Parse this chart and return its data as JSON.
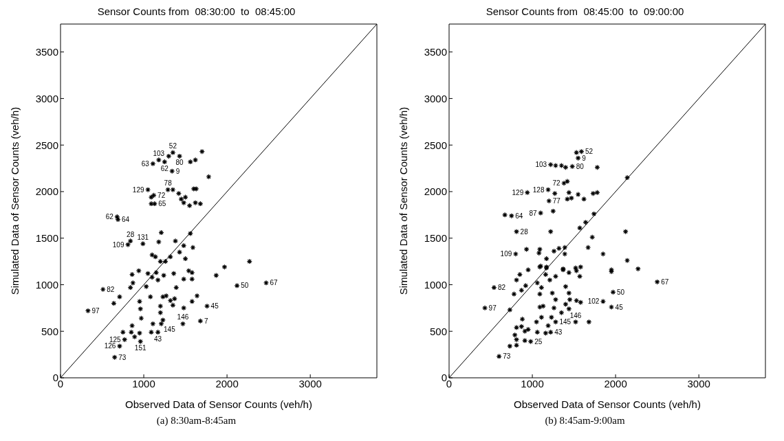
{
  "chart_data": [
    {
      "type": "scatter",
      "title": "Sensor Counts from  08:30:00  to  08:45:00",
      "xlabel": "Observed Data of Sensor Counts (veh/h)",
      "ylabel": "Simulated Data of Sensor Counts (veh/h)",
      "xlim": [
        0,
        3800
      ],
      "ylim": [
        0,
        3800
      ],
      "xticks": [
        0,
        1000,
        2000,
        3000
      ],
      "yticks": [
        0,
        500,
        1000,
        1500,
        2000,
        2500,
        3000,
        3500
      ],
      "grid": false,
      "series": [
        {
          "color": "#000000",
          "marker": "cross",
          "x": [
            1350,
            1430,
            1180,
            1110,
            1250,
            1340,
            1700,
            1620,
            1560,
            1780,
            1300,
            1050,
            1120,
            1090,
            1290,
            1350,
            1130,
            1090,
            1420,
            1450,
            1480,
            1600,
            1630,
            1550,
            1620,
            1680,
            1500,
            680,
            690,
            840,
            810,
            990,
            1180,
            1210,
            1560,
            1380,
            1480,
            1590,
            1430,
            1320,
            1140,
            1100,
            1200,
            1500,
            1260,
            1970,
            2270,
            940,
            860,
            1050,
            1100,
            1150,
            1170,
            1240,
            1360,
            1540,
            1580,
            1480,
            1580,
            1870,
            870,
            840,
            1030,
            1390,
            510,
            2120,
            710,
            640,
            1080,
            1230,
            1270,
            1320,
            1370,
            1350,
            950,
            960,
            970,
            1480,
            1580,
            1640,
            1760,
            1200,
            1200,
            1230,
            1210,
            1110,
            1470,
            1680,
            860,
            850,
            750,
            950,
            1090,
            1170,
            890,
            770,
            960,
            710,
            650,
            330,
            2470
          ],
          "values": [
            2420,
            2380,
            2340,
            2300,
            2320,
            2220,
            2430,
            2340,
            2320,
            2160,
            2380,
            2020,
            1960,
            1940,
            2020,
            2020,
            1870,
            1870,
            1980,
            1920,
            1880,
            2030,
            2030,
            1850,
            1880,
            1870,
            1940,
            1730,
            1700,
            1470,
            1430,
            1440,
            1460,
            1560,
            1550,
            1470,
            1420,
            1400,
            1350,
            1300,
            1300,
            1320,
            1250,
            1280,
            1250,
            1190,
            1250,
            1150,
            1110,
            1120,
            1080,
            1130,
            1050,
            1100,
            1120,
            1150,
            1130,
            1060,
            1060,
            1100,
            1020,
            970,
            980,
            970,
            950,
            990,
            870,
            800,
            870,
            870,
            880,
            830,
            850,
            780,
            820,
            740,
            640,
            750,
            820,
            880,
            770,
            770,
            700,
            620,
            580,
            580,
            580,
            610,
            560,
            490,
            490,
            480,
            490,
            490,
            440,
            410,
            390,
            340,
            220,
            720,
            1020
          ]
        },
        {
          "type": "line",
          "color": "#000000",
          "x": [
            0,
            3800
          ],
          "values": [
            0,
            3800
          ]
        }
      ],
      "annotations": [
        {
          "text": "52",
          "x": 1350,
          "y": 2420
        },
        {
          "text": "103",
          "x": 1180,
          "y": 2340
        },
        {
          "text": "80",
          "x": 1430,
          "y": 2380
        },
        {
          "text": "63",
          "x": 1110,
          "y": 2300
        },
        {
          "text": "62",
          "x": 1250,
          "y": 2320
        },
        {
          "text": "9",
          "x": 1340,
          "y": 2220
        },
        {
          "text": "129",
          "x": 1050,
          "y": 2020
        },
        {
          "text": "72",
          "x": 1120,
          "y": 1960
        },
        {
          "text": "78",
          "x": 1290,
          "y": 2020
        },
        {
          "text": "65",
          "x": 1130,
          "y": 1870
        },
        {
          "text": "62",
          "x": 680,
          "y": 1730
        },
        {
          "text": "64",
          "x": 690,
          "y": 1700
        },
        {
          "text": "28",
          "x": 840,
          "y": 1470
        },
        {
          "text": "109",
          "x": 810,
          "y": 1430
        },
        {
          "text": "131",
          "x": 990,
          "y": 1440
        },
        {
          "text": "82",
          "x": 510,
          "y": 950
        },
        {
          "text": "97",
          "x": 330,
          "y": 720
        },
        {
          "text": "50",
          "x": 2120,
          "y": 990
        },
        {
          "text": "67",
          "x": 2470,
          "y": 1020
        },
        {
          "text": "45",
          "x": 1760,
          "y": 770
        },
        {
          "text": "145",
          "x": 1210,
          "y": 580
        },
        {
          "text": "146",
          "x": 1470,
          "y": 580
        },
        {
          "text": "7",
          "x": 1680,
          "y": 610
        },
        {
          "text": "43",
          "x": 1170,
          "y": 490
        },
        {
          "text": "125",
          "x": 770,
          "y": 410
        },
        {
          "text": "151",
          "x": 960,
          "y": 390
        },
        {
          "text": "126",
          "x": 710,
          "y": 340
        },
        {
          "text": "73",
          "x": 650,
          "y": 220
        },
        "(a) 8:30am-8:45am"
      ]
    },
    {
      "type": "scatter",
      "title": "Sensor Counts from  08:45:00  to  09:00:00",
      "xlabel": "Observed Data of Sensor Counts (veh/h)",
      "ylabel": "Simulated Data of Sensor Counts (veh/h)",
      "xlim": [
        0,
        3800
      ],
      "ylim": [
        0,
        3800
      ],
      "xticks": [
        0,
        1000,
        2000,
        3000
      ],
      "yticks": [
        0,
        500,
        1000,
        1500,
        2000,
        2500,
        3000,
        3500
      ],
      "grid": false,
      "series": [
        {
          "color": "#000000",
          "marker": "cross",
          "x": [
            1090,
            1170,
            950,
            850,
            810,
            920,
            870,
            780,
            1060,
            1110,
            1090,
            1160,
            1210,
            1280,
            1370,
            1440,
            1530,
            1570,
            1240,
            1280,
            1260,
            1400,
            1440,
            1450,
            1400,
            1440,
            1530,
            1580,
            1350,
            1230,
            1110,
            1050,
            880,
            1280,
            1090,
            1130,
            1520,
            1680,
            1850,
            1950,
            1970,
            1950,
            1950,
            730,
            540,
            430,
            1190,
            1160,
            1060,
            1220,
            810,
            870,
            910,
            950,
            790,
            810,
            910,
            980,
            730,
            810,
            600,
            1590,
            1530,
            1550,
            1220,
            1280,
            1350,
            1400,
            1480,
            1780,
            1380,
            1420,
            1190,
            1270,
            1200,
            940,
            1440,
            1420,
            1470,
            1550,
            1620,
            1730,
            1780,
            1100,
            1250,
            670,
            750,
            810,
            1220,
            1570,
            1640,
            1740,
            2140,
            2120,
            1720,
            1670,
            1850,
            2140,
            800,
            930,
            1090,
            1080,
            1170,
            1260,
            1320,
            1390,
            1390,
            1100,
            1170,
            1370,
            1520,
            1580,
            2500,
            2270
          ],
          "values": [
            1190,
            1190,
            1160,
            1110,
            1050,
            990,
            940,
            900,
            1020,
            970,
            900,
            1110,
            1050,
            1090,
            1160,
            1130,
            1150,
            1090,
            910,
            840,
            750,
            980,
            910,
            840,
            790,
            740,
            830,
            810,
            700,
            650,
            650,
            600,
            630,
            600,
            760,
            770,
            600,
            600,
            820,
            760,
            920,
            1160,
            1140,
            730,
            970,
            750,
            560,
            480,
            490,
            490,
            540,
            550,
            500,
            520,
            460,
            410,
            400,
            390,
            340,
            350,
            230,
            2430,
            2420,
            2360,
            2290,
            2280,
            2280,
            2260,
            2270,
            2260,
            2090,
            2110,
            2020,
            1980,
            1900,
            1990,
            1990,
            1920,
            1930,
            1970,
            1920,
            1980,
            1990,
            1770,
            1790,
            1750,
            1740,
            1570,
            1570,
            1610,
            1670,
            1760,
            2150,
            1570,
            1510,
            1400,
            1330,
            1260,
            1330,
            1380,
            1380,
            1340,
            1280,
            1360,
            1390,
            1400,
            1330,
            1200,
            1180,
            1170,
            1180,
            1190,
            1030,
            1170
          ]
        },
        {
          "type": "line",
          "color": "#000000",
          "x": [
            0,
            3800
          ],
          "values": [
            0,
            3800
          ]
        }
      ],
      "annotations": [
        {
          "text": "52",
          "x": 1590,
          "y": 2430
        },
        {
          "text": "9",
          "x": 1550,
          "y": 2360
        },
        {
          "text": "103",
          "x": 1220,
          "y": 2290
        },
        {
          "text": "80",
          "x": 1480,
          "y": 2270
        },
        {
          "text": "72",
          "x": 1380,
          "y": 2090
        },
        {
          "text": "128",
          "x": 1190,
          "y": 2020
        },
        {
          "text": "129",
          "x": 940,
          "y": 1990
        },
        {
          "text": "77",
          "x": 1200,
          "y": 1900
        },
        {
          "text": "87",
          "x": 1100,
          "y": 1770
        },
        {
          "text": "64",
          "x": 750,
          "y": 1740
        },
        {
          "text": "28",
          "x": 810,
          "y": 1570
        },
        {
          "text": "109",
          "x": 800,
          "y": 1330
        },
        {
          "text": "82",
          "x": 540,
          "y": 970
        },
        {
          "text": "97",
          "x": 430,
          "y": 750
        },
        {
          "text": "50",
          "x": 1970,
          "y": 920
        },
        {
          "text": "102",
          "x": 1850,
          "y": 820
        },
        {
          "text": "45",
          "x": 1950,
          "y": 760
        },
        {
          "text": "67",
          "x": 2500,
          "y": 1030
        },
        {
          "text": "145",
          "x": 1280,
          "y": 600
        },
        {
          "text": "146",
          "x": 1520,
          "y": 600
        },
        {
          "text": "43",
          "x": 1220,
          "y": 490
        },
        {
          "text": "25",
          "x": 980,
          "y": 390
        },
        {
          "text": "73",
          "x": 600,
          "y": 230
        },
        "(b) 8:45am-9:00am"
      ]
    }
  ]
}
